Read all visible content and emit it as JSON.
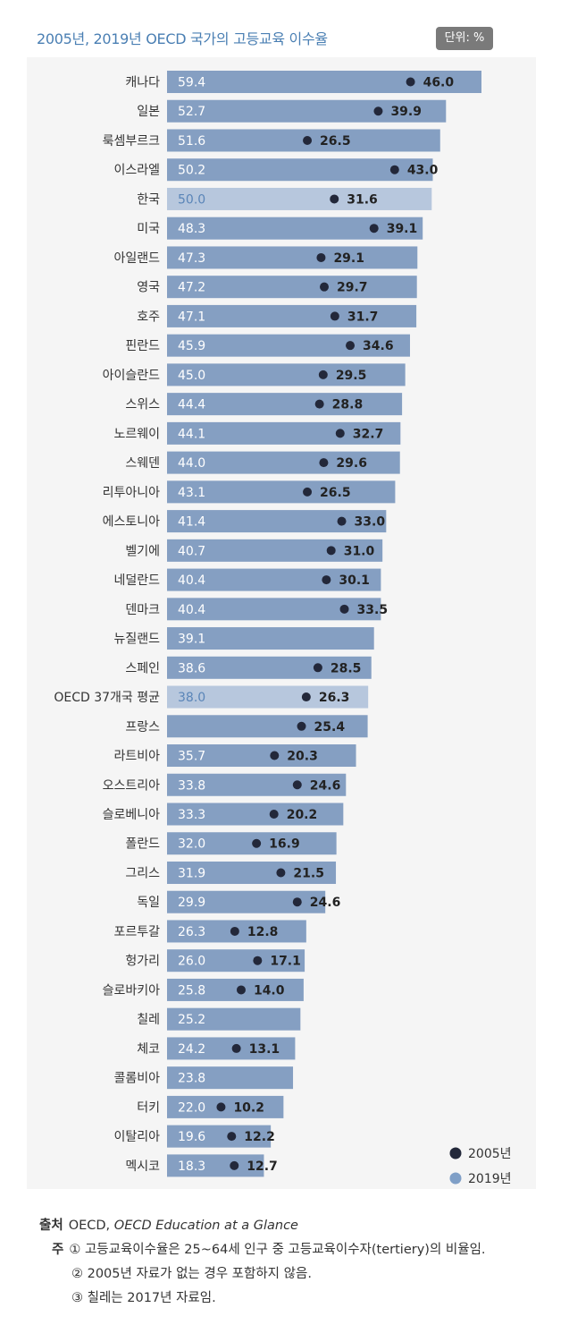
{
  "header": {
    "title": "2005년, 2019년 OECD 국가의 고등교육 이수율",
    "unit": "단위: %"
  },
  "colors": {
    "bar": "#859fc2",
    "bar_highlight": "#b7c7dd",
    "dot_2005": "#23283a",
    "dot_2019": "#7f9fc7",
    "background": "#f5f5f5"
  },
  "chart_data": {
    "type": "bar",
    "orientation": "horizontal",
    "categories": [
      "캐나다",
      "일본",
      "룩셈부르크",
      "이스라엘",
      "한국",
      "미국",
      "아일랜드",
      "영국",
      "호주",
      "핀란드",
      "아이슬란드",
      "스위스",
      "노르웨이",
      "스웨덴",
      "리투아니아",
      "에스토니아",
      "벨기에",
      "네덜란드",
      "덴마크",
      "뉴질랜드",
      "스페인",
      "OECD 37개국 평균",
      "프랑스",
      "라트비아",
      "오스트리아",
      "슬로베니아",
      "폴란드",
      "그리스",
      "독일",
      "포르투갈",
      "헝가리",
      "슬로바키아",
      "칠레",
      "체코",
      "콜롬비아",
      "터키",
      "이탈리아",
      "멕시코"
    ],
    "highlight": [
      "한국",
      "OECD 37개국 평균"
    ],
    "series": [
      {
        "name": "2019년",
        "mark": "bar",
        "values": [
          59.4,
          52.7,
          51.6,
          50.2,
          50.0,
          48.3,
          47.3,
          47.2,
          47.1,
          45.9,
          45.0,
          44.4,
          44.1,
          44.0,
          43.1,
          41.4,
          40.7,
          40.4,
          40.4,
          39.1,
          38.6,
          38.0,
          null,
          35.7,
          33.8,
          33.3,
          32.0,
          31.9,
          29.9,
          26.3,
          26.0,
          25.8,
          25.2,
          24.2,
          23.8,
          22.0,
          19.6,
          18.3
        ],
        "bar_lengths": [
          59.4,
          52.7,
          51.6,
          50.2,
          50.0,
          48.3,
          47.3,
          47.2,
          47.1,
          45.9,
          45.0,
          44.4,
          44.1,
          44.0,
          43.1,
          41.4,
          40.7,
          40.4,
          40.4,
          39.1,
          38.6,
          38.0,
          37.9,
          35.7,
          33.8,
          33.3,
          32.0,
          31.9,
          29.9,
          26.3,
          26.0,
          25.8,
          25.2,
          24.2,
          23.8,
          22.0,
          19.6,
          18.3
        ]
      },
      {
        "name": "2005년",
        "mark": "dot",
        "values": [
          46.0,
          39.9,
          26.5,
          43.0,
          31.6,
          39.1,
          29.1,
          29.7,
          31.7,
          34.6,
          29.5,
          28.8,
          32.7,
          29.6,
          26.5,
          33.0,
          31.0,
          30.1,
          33.5,
          null,
          28.5,
          26.3,
          25.4,
          20.3,
          24.6,
          20.2,
          16.9,
          21.5,
          24.6,
          12.8,
          17.1,
          14.0,
          null,
          13.1,
          null,
          10.2,
          12.2,
          12.7
        ]
      }
    ],
    "xlim": [
      0,
      61
    ],
    "grid": false,
    "legend": {
      "placement": "bottom-right",
      "entries": [
        "2005년",
        "2019년"
      ]
    }
  },
  "footer": {
    "source_label": "출처",
    "source_org": "OECD,",
    "source_title": "OECD Education at a Glance",
    "note_label": "주",
    "notes": [
      "① 고등교육이수율은 25~64세 인구 중 고등교육이수자(tertiery)의 비율임.",
      "② 2005년 자료가 없는 경우 포함하지 않음.",
      "③ 칠레는 2017년 자료임."
    ]
  }
}
